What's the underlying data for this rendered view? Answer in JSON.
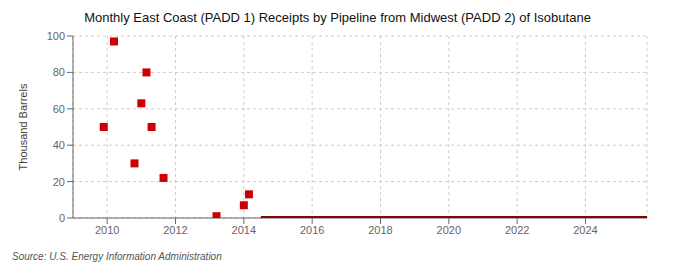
{
  "chart_data": {
    "type": "scatter",
    "title": "Monthly East Coast (PADD 1) Receipts by Pipeline from Midwest (PADD 2) of Isobutane",
    "y_label": "Thousand Barrels",
    "annotation": "Source: U.S. Energy Information Administration",
    "xlim": [
      2009.0,
      2025.8
    ],
    "ylim": [
      0,
      100
    ],
    "xticks": [
      2010,
      2012,
      2014,
      2016,
      2018,
      2020,
      2022,
      2024
    ],
    "yticks": [
      0,
      20,
      40,
      60,
      80,
      100
    ],
    "grid": true,
    "series": [
      {
        "type": "scatter",
        "marker": "square",
        "color": "#cc0000",
        "x": [
          2009.9,
          2010.2,
          2010.8,
          2011.0,
          2011.15,
          2011.3,
          2011.65,
          2013.2,
          2014.0,
          2014.15
        ],
        "values": [
          50,
          97,
          30,
          63,
          80,
          50,
          22,
          1,
          7,
          13
        ]
      },
      {
        "type": "line",
        "color": "#8b0000",
        "x": [
          2014.5,
          2025.8
        ],
        "values": [
          0,
          0
        ]
      }
    ]
  }
}
